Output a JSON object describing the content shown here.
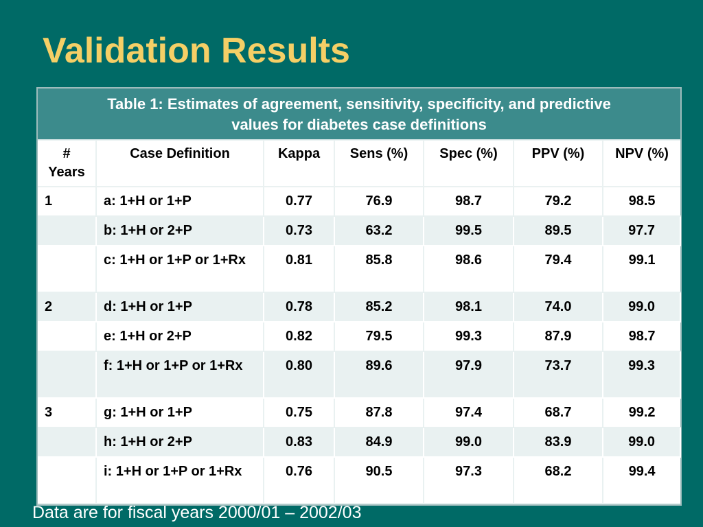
{
  "slide": {
    "title": "Validation Results",
    "footnote": "Data are for fiscal years 2000/01 – 2002/03"
  },
  "table": {
    "caption_line1": "Table 1: Estimates of agreement, sensitivity, specificity, and predictive",
    "caption_line2": "values for diabetes case definitions",
    "headers": {
      "years_line1": "#",
      "years_line2": "Years",
      "case_definition": "Case Definition",
      "kappa": "Kappa",
      "sens": "Sens (%)",
      "spec": "Spec (%)",
      "ppv": "PPV (%)",
      "npv": "NPV (%)"
    },
    "rows": [
      {
        "years": "1",
        "def": "a: 1+H or 1+P",
        "kappa": "0.77",
        "sens": "76.9",
        "spec": "98.7",
        "ppv": "79.2",
        "npv": "98.5"
      },
      {
        "years": "",
        "def": "b: 1+H or 2+P",
        "kappa": "0.73",
        "sens": "63.2",
        "spec": "99.5",
        "ppv": "89.5",
        "npv": "97.7"
      },
      {
        "years": "",
        "def": "c: 1+H or 1+P or 1+Rx",
        "kappa": "0.81",
        "sens": "85.8",
        "spec": "98.6",
        "ppv": "79.4",
        "npv": "99.1"
      },
      {
        "years": "2",
        "def": "d: 1+H or 1+P",
        "kappa": "0.78",
        "sens": "85.2",
        "spec": "98.1",
        "ppv": "74.0",
        "npv": "99.0"
      },
      {
        "years": "",
        "def": "e: 1+H or 2+P",
        "kappa": "0.82",
        "sens": "79.5",
        "spec": "99.3",
        "ppv": "87.9",
        "npv": "98.7"
      },
      {
        "years": "",
        "def": "f: 1+H or 1+P or 1+Rx",
        "kappa": "0.80",
        "sens": "89.6",
        "spec": "97.9",
        "ppv": "73.7",
        "npv": "99.3"
      },
      {
        "years": "3",
        "def": "g: 1+H or 1+P",
        "kappa": "0.75",
        "sens": "87.8",
        "spec": "97.4",
        "ppv": "68.7",
        "npv": "99.2"
      },
      {
        "years": "",
        "def": "h: 1+H or 2+P",
        "kappa": "0.83",
        "sens": "84.9",
        "spec": "99.0",
        "ppv": "83.9",
        "npv": "99.0"
      },
      {
        "years": "",
        "def": "i: 1+H or 1+P or 1+Rx",
        "kappa": "0.76",
        "sens": "90.5",
        "spec": "97.3",
        "ppv": "68.2",
        "npv": "99.4"
      }
    ]
  },
  "colors": {
    "background": "#006a66",
    "title": "#f5cf66",
    "caption_band": "#3c8b8c",
    "row_alt": "#e9f1f1"
  }
}
